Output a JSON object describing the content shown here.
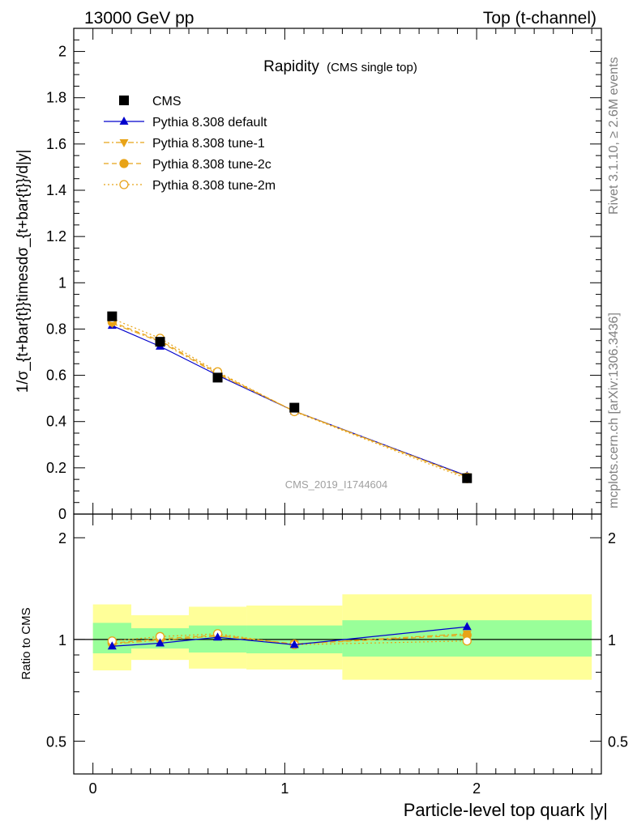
{
  "header": {
    "left": "13000 GeV pp",
    "right": "Top (t-channel)"
  },
  "plot_title": {
    "main": "Rapidity",
    "sub": "(CMS single top)"
  },
  "watermark": "CMS_2019_I1744604",
  "side_text": {
    "upper": "Rivet 3.1.10, ≥ 2.6M events",
    "lower": "mcplots.cern.ch [arXiv:1306.3436]"
  },
  "colors": {
    "cms": "#000000",
    "default": "#0000cc",
    "tunes": "#e8a317",
    "band_inner": "#99ff99",
    "band_outer": "#ffff99"
  },
  "chart_data": [
    {
      "type": "line",
      "panel": "main",
      "ylabel": "1/σ_{t+bar{t}}timesdσ_{t+bar{t}}/d|y|",
      "xlim": [
        -0.1,
        2.65
      ],
      "ylim": [
        0,
        2.1
      ],
      "yticks": [
        {
          "v": 0,
          "label": "0"
        },
        {
          "v": 0.2,
          "label": "0.2"
        },
        {
          "v": 0.4,
          "label": "0.4"
        },
        {
          "v": 0.6,
          "label": "0.6"
        },
        {
          "v": 0.8,
          "label": "0.8"
        },
        {
          "v": 1.0,
          "label": "1"
        },
        {
          "v": 1.2,
          "label": "1.2"
        },
        {
          "v": 1.4,
          "label": "1.4"
        },
        {
          "v": 1.6,
          "label": "1.6"
        },
        {
          "v": 1.8,
          "label": "1.8"
        },
        {
          "v": 2.0,
          "label": "2"
        }
      ],
      "x": [
        0.1,
        0.35,
        0.65,
        1.05,
        1.95
      ],
      "bin_edges": [
        0,
        0.2,
        0.5,
        0.8,
        1.3,
        2.6
      ],
      "series": [
        {
          "name": "CMS",
          "key": "cms",
          "values": [
            0.855,
            0.745,
            0.59,
            0.46,
            0.155
          ]
        },
        {
          "name": "Pythia 8.308 default",
          "key": "default",
          "values": [
            0.815,
            0.725,
            0.6,
            0.445,
            0.165
          ]
        },
        {
          "name": "Pythia 8.308 tune-1",
          "key": "tune1",
          "values": [
            0.825,
            0.745,
            0.605,
            0.445,
            0.162
          ]
        },
        {
          "name": "Pythia 8.308 tune-2c",
          "key": "tune2c",
          "values": [
            0.83,
            0.75,
            0.61,
            0.445,
            0.16
          ]
        },
        {
          "name": "Pythia 8.308 tune-2m",
          "key": "tune2m",
          "values": [
            0.845,
            0.76,
            0.615,
            0.443,
            0.153
          ]
        }
      ]
    },
    {
      "type": "line",
      "panel": "ratio",
      "ylabel": "Ratio to CMS",
      "xlabel": "Particle-level top quark |y|",
      "yscale": "log",
      "ylim": [
        0.4,
        2.35
      ],
      "yticks": [
        {
          "v": 0.5,
          "label": "0.5"
        },
        {
          "v": 1,
          "label": "1"
        },
        {
          "v": 2,
          "label": "2"
        }
      ],
      "xticks": [
        {
          "v": 0,
          "label": "0"
        },
        {
          "v": 1,
          "label": "1"
        },
        {
          "v": 2,
          "label": "2"
        }
      ],
      "bands": {
        "bin_edges": [
          0,
          0.2,
          0.5,
          0.8,
          1.3,
          2.6
        ],
        "inner": [
          [
            0.91,
            1.12
          ],
          [
            0.94,
            1.08
          ],
          [
            0.915,
            1.1
          ],
          [
            0.91,
            1.1
          ],
          [
            0.89,
            1.14
          ]
        ],
        "outer": [
          [
            0.81,
            1.27
          ],
          [
            0.87,
            1.18
          ],
          [
            0.82,
            1.25
          ],
          [
            0.815,
            1.26
          ],
          [
            0.76,
            1.36
          ]
        ]
      },
      "x": [
        0.1,
        0.35,
        0.65,
        1.05,
        1.95
      ],
      "series": [
        {
          "name": "Pythia 8.308 default",
          "key": "default",
          "values": [
            0.955,
            0.975,
            1.015,
            0.965,
            1.09
          ]
        },
        {
          "name": "Pythia 8.308 tune-1",
          "key": "tune1",
          "values": [
            0.97,
            0.995,
            1.025,
            0.97,
            1.04
          ]
        },
        {
          "name": "Pythia 8.308 tune-2c",
          "key": "tune2c",
          "values": [
            0.975,
            1.005,
            1.03,
            0.97,
            1.03
          ]
        },
        {
          "name": "Pythia 8.308 tune-2m",
          "key": "tune2m",
          "values": [
            0.99,
            1.02,
            1.04,
            0.965,
            0.99
          ]
        }
      ]
    }
  ]
}
